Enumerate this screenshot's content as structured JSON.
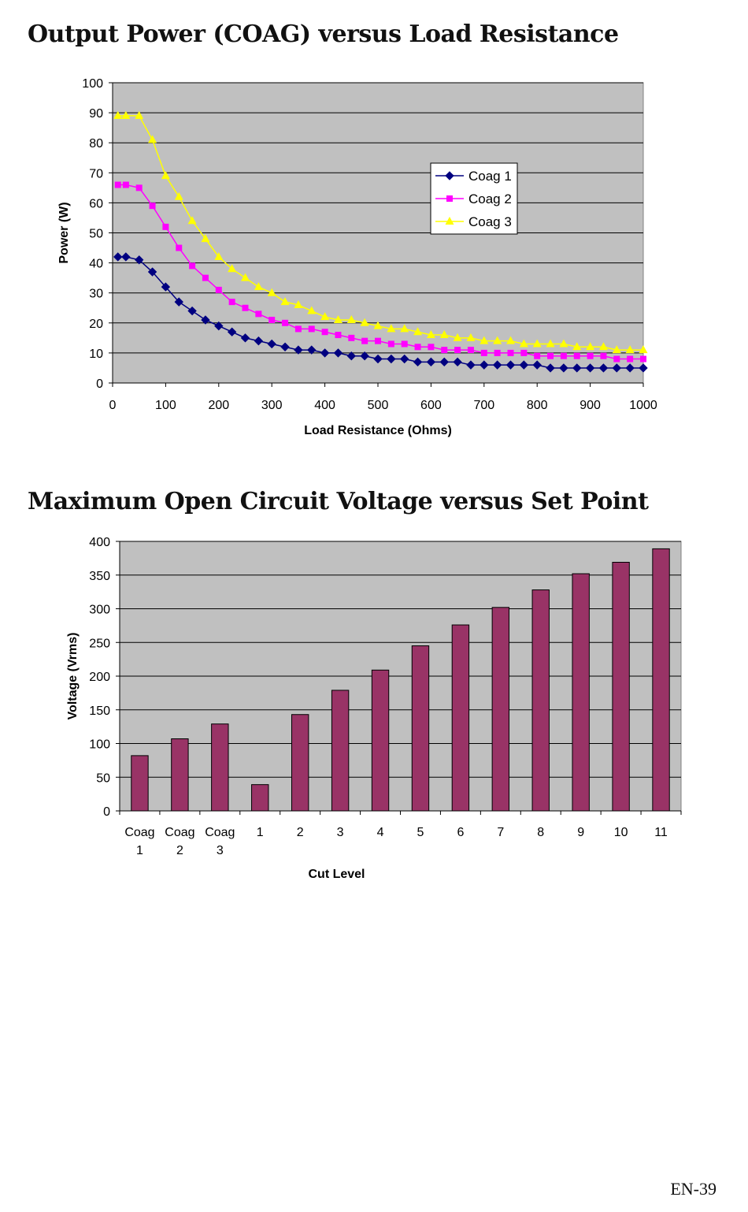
{
  "page_number": "EN-39",
  "chart_data": [
    {
      "type": "line",
      "title": "Output Power (COAG) versus Load Resistance",
      "xlabel": "Load Resistance (Ohms)",
      "ylabel": "Power (W)",
      "xlim": [
        0,
        1000
      ],
      "ylim": [
        0,
        100
      ],
      "xticks": [
        0,
        100,
        200,
        300,
        400,
        500,
        600,
        700,
        800,
        900,
        1000
      ],
      "yticks": [
        0,
        10,
        20,
        30,
        40,
        50,
        60,
        70,
        80,
        90,
        100
      ],
      "grid": "horizontal",
      "plot_background": "#c0c0c0",
      "legend_position": "upper-right-inside",
      "x": [
        10,
        25,
        50,
        75,
        100,
        125,
        150,
        175,
        200,
        225,
        250,
        275,
        300,
        325,
        350,
        375,
        400,
        425,
        450,
        475,
        500,
        525,
        550,
        575,
        600,
        625,
        650,
        675,
        700,
        725,
        750,
        775,
        800,
        825,
        850,
        875,
        900,
        925,
        950,
        975,
        1000
      ],
      "series": [
        {
          "name": "Coag 1",
          "color": "#000080",
          "marker": "diamond",
          "values": [
            42,
            42,
            41,
            37,
            32,
            27,
            24,
            21,
            19,
            17,
            15,
            14,
            13,
            12,
            11,
            11,
            10,
            10,
            9,
            9,
            8,
            8,
            8,
            7,
            7,
            7,
            7,
            6,
            6,
            6,
            6,
            6,
            6,
            5,
            5,
            5,
            5,
            5,
            5,
            5,
            5
          ]
        },
        {
          "name": "Coag 2",
          "color": "#ff00ff",
          "marker": "square",
          "values": [
            66,
            66,
            65,
            59,
            52,
            45,
            39,
            35,
            31,
            27,
            25,
            23,
            21,
            20,
            18,
            18,
            17,
            16,
            15,
            14,
            14,
            13,
            13,
            12,
            12,
            11,
            11,
            11,
            10,
            10,
            10,
            10,
            9,
            9,
            9,
            9,
            9,
            9,
            8,
            8,
            8
          ]
        },
        {
          "name": "Coag 3",
          "color": "#ffff00",
          "marker": "triangle",
          "values": [
            89,
            89,
            89,
            81,
            69,
            62,
            54,
            48,
            42,
            38,
            35,
            32,
            30,
            27,
            26,
            24,
            22,
            21,
            21,
            20,
            19,
            18,
            18,
            17,
            16,
            16,
            15,
            15,
            14,
            14,
            14,
            13,
            13,
            13,
            13,
            12,
            12,
            12,
            11,
            11,
            11
          ]
        }
      ]
    },
    {
      "type": "bar",
      "title": "Maximum Open Circuit Voltage versus Set Point",
      "xlabel": "Cut Level",
      "ylabel": "Voltage (Vrms)",
      "ylim": [
        0,
        400
      ],
      "yticks": [
        0,
        50,
        100,
        150,
        200,
        250,
        300,
        350,
        400
      ],
      "grid": "horizontal",
      "plot_background": "#c0c0c0",
      "bar_color": "#993366",
      "categories": [
        [
          "Coag",
          "1"
        ],
        [
          "Coag",
          "2"
        ],
        [
          "Coag",
          "3"
        ],
        [
          "1"
        ],
        [
          "2"
        ],
        [
          "3"
        ],
        [
          "4"
        ],
        [
          "5"
        ],
        [
          "6"
        ],
        [
          "7"
        ],
        [
          "8"
        ],
        [
          "9"
        ],
        [
          "10"
        ],
        [
          "11"
        ]
      ],
      "values": [
        82,
        107,
        129,
        39,
        143,
        179,
        209,
        245,
        276,
        302,
        328,
        352,
        369,
        389
      ]
    }
  ]
}
